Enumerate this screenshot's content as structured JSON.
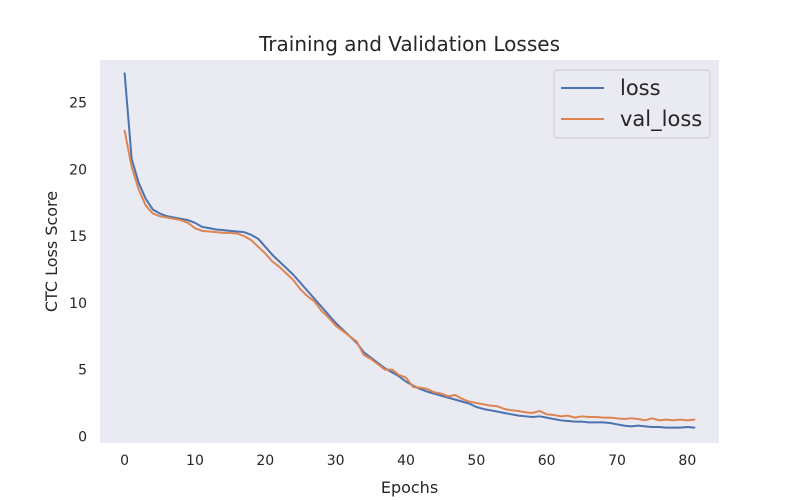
{
  "chart_data": {
    "type": "line",
    "title": "Training and Validation Losses",
    "xlabel": "Epochs",
    "ylabel": "CTC Loss Score",
    "xlim": [
      -3.5,
      84.5
    ],
    "ylim": [
      -0.5,
      28.2
    ],
    "xticks": [
      0,
      10,
      20,
      30,
      40,
      50,
      60,
      70,
      80
    ],
    "yticks": [
      0,
      5,
      10,
      15,
      20,
      25
    ],
    "grid": false,
    "legend_position": "top-right",
    "series": [
      {
        "name": "loss",
        "color": "#4c72b0",
        "x": [
          0,
          1,
          2,
          3,
          4,
          5,
          6,
          7,
          8,
          9,
          10,
          11,
          12,
          13,
          14,
          15,
          16,
          17,
          18,
          19,
          20,
          21,
          22,
          23,
          24,
          25,
          26,
          27,
          28,
          29,
          30,
          31,
          32,
          33,
          34,
          35,
          36,
          37,
          38,
          39,
          40,
          41,
          42,
          43,
          44,
          45,
          46,
          47,
          48,
          49,
          50,
          51,
          52,
          53,
          54,
          55,
          56,
          57,
          58,
          59,
          60,
          61,
          62,
          63,
          64,
          65,
          66,
          67,
          68,
          69,
          70,
          71,
          72,
          73,
          74,
          75,
          76,
          77,
          78,
          79,
          80,
          81
        ],
        "values": [
          27.2,
          20.8,
          19.0,
          17.8,
          17.0,
          16.7,
          16.5,
          16.4,
          16.3,
          16.2,
          16.0,
          15.7,
          15.6,
          15.5,
          15.45,
          15.4,
          15.35,
          15.3,
          15.1,
          14.8,
          14.2,
          13.6,
          13.1,
          12.6,
          12.1,
          11.5,
          10.9,
          10.3,
          9.7,
          9.1,
          8.5,
          8.0,
          7.5,
          7.0,
          6.3,
          5.9,
          5.5,
          5.1,
          4.8,
          4.5,
          4.1,
          3.8,
          3.55,
          3.35,
          3.2,
          3.05,
          2.9,
          2.75,
          2.6,
          2.45,
          2.2,
          2.05,
          1.95,
          1.85,
          1.75,
          1.65,
          1.55,
          1.5,
          1.45,
          1.5,
          1.4,
          1.3,
          1.2,
          1.15,
          1.1,
          1.1,
          1.05,
          1.05,
          1.05,
          1.0,
          0.9,
          0.8,
          0.75,
          0.8,
          0.75,
          0.7,
          0.7,
          0.65,
          0.65,
          0.65,
          0.7,
          0.65
        ]
      },
      {
        "name": "val_loss",
        "color": "#dd8452",
        "x": [
          0,
          1,
          2,
          3,
          4,
          5,
          6,
          7,
          8,
          9,
          10,
          11,
          12,
          13,
          14,
          15,
          16,
          17,
          18,
          19,
          20,
          21,
          22,
          23,
          24,
          25,
          26,
          27,
          28,
          29,
          30,
          31,
          32,
          33,
          34,
          35,
          36,
          37,
          38,
          39,
          40,
          41,
          42,
          43,
          44,
          45,
          46,
          47,
          48,
          49,
          50,
          51,
          52,
          53,
          54,
          55,
          56,
          57,
          58,
          59,
          60,
          61,
          62,
          63,
          64,
          65,
          66,
          67,
          68,
          69,
          70,
          71,
          72,
          73,
          74,
          75,
          76,
          77,
          78,
          79,
          80,
          81
        ],
        "values": [
          22.9,
          20.2,
          18.5,
          17.3,
          16.7,
          16.5,
          16.4,
          16.3,
          16.2,
          16.0,
          15.6,
          15.4,
          15.35,
          15.3,
          15.25,
          15.25,
          15.2,
          15.0,
          14.7,
          14.2,
          13.7,
          13.1,
          12.7,
          12.2,
          11.7,
          11.0,
          10.5,
          10.1,
          9.4,
          8.9,
          8.3,
          7.9,
          7.5,
          7.1,
          6.1,
          5.8,
          5.4,
          5.0,
          5.0,
          4.6,
          4.4,
          3.7,
          3.65,
          3.55,
          3.3,
          3.2,
          3.0,
          3.1,
          2.8,
          2.6,
          2.5,
          2.4,
          2.3,
          2.25,
          2.05,
          1.95,
          1.9,
          1.8,
          1.75,
          1.9,
          1.65,
          1.6,
          1.5,
          1.55,
          1.4,
          1.5,
          1.45,
          1.45,
          1.4,
          1.4,
          1.35,
          1.3,
          1.35,
          1.3,
          1.2,
          1.35,
          1.2,
          1.25,
          1.2,
          1.25,
          1.2,
          1.25
        ]
      }
    ]
  }
}
